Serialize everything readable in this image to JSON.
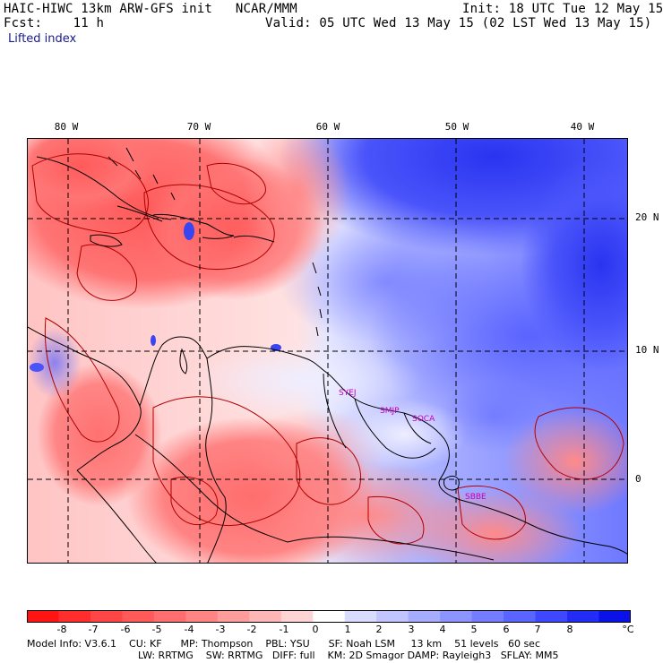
{
  "header": {
    "title_left": "HAIC-HIWC 13km ARW-GFS init   NCAR/MMM",
    "fcst": "Fcst:    11 h",
    "field": "Lifted index",
    "init": "Init: 18 UTC Tue 12 May 15",
    "valid": "Valid: 05 UTC Wed 13 May 15 (02 LST Wed 13 May 15)"
  },
  "map": {
    "lon_labels": [
      "80 W",
      "70 W",
      "60 W",
      "50 W",
      "40 W"
    ],
    "lat_labels": [
      "20 N",
      "10 N",
      "0"
    ],
    "stations": [
      "SYEJ",
      "SMJP",
      "SOCA",
      "SBBE"
    ]
  },
  "colorbar": {
    "labels": [
      "-8",
      "-7",
      "-6",
      "-5",
      "-4",
      "-3",
      "-2",
      "-1",
      "0",
      "1",
      "2",
      "3",
      "4",
      "5",
      "6",
      "7",
      "8"
    ],
    "unit": "°C",
    "colors": [
      "#ff1414",
      "#ff2d2d",
      "#ff4646",
      "#ff5a5a",
      "#ff6e6e",
      "#ff8484",
      "#ff9c9c",
      "#ffb6b6",
      "#ffd4d4",
      "#ffffff",
      "#dadcff",
      "#c0c4ff",
      "#a6acff",
      "#8c94ff",
      "#747cff",
      "#5a64ff",
      "#3e48ff",
      "#222cf5",
      "#0a12e8"
    ]
  },
  "footer": {
    "line1": "Model Info: V3.6.1    CU: KF      MP: Thompson    PBL: YSU      SF: Noah LSM     13 km    51 levels   60 sec",
    "line2": "LW: RRTMG    SW: RRTMG   DIFF: full    KM: 2D Smagor DAMP: Rayleigh3   SFLAY: MM5"
  }
}
